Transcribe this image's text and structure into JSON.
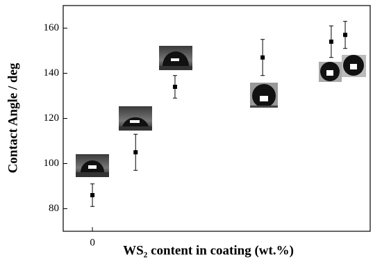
{
  "chart_data": {
    "type": "scatter",
    "x_label": "WS₂ content in coating (wt.%)",
    "y_label": "Contact Angle / deg",
    "x": [
      0,
      1.02,
      1.95,
      4.02,
      5.64,
      5.97
    ],
    "values": [
      86,
      105,
      134,
      147,
      154,
      157
    ],
    "errors": [
      5,
      8,
      5,
      8,
      7,
      6
    ],
    "color": "#000000",
    "xlim": [
      -0.69,
      6.56
    ],
    "xticks": [
      0
    ],
    "ylim": [
      70,
      170
    ],
    "yticks": [
      80,
      100,
      120,
      140,
      160
    ],
    "grid": false
  }
}
